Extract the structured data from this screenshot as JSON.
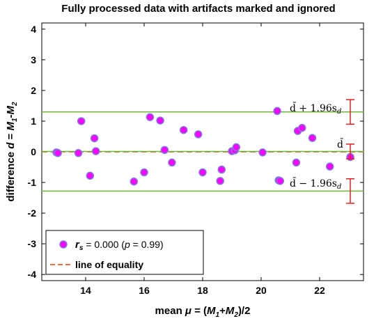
{
  "chart_data": {
    "type": "scatter",
    "title": "Fully processed data with artifacts marked and ignored",
    "xlabel": "mean μ = (M1+M2)/2",
    "ylabel": "difference d = M1-M2",
    "xlim": [
      12.5,
      23.5
    ],
    "ylim": [
      -4.2,
      4.2
    ],
    "x_ticks": [
      "14",
      "16",
      "18",
      "20",
      "22"
    ],
    "y_ticks": [
      "4",
      "3",
      "2",
      "1",
      "0",
      "-1",
      "-2",
      "-3",
      "-4"
    ],
    "grid": false,
    "series": [
      {
        "name": "rs = 0.000 (p = 0.99)",
        "marker_color": "#ff00ff",
        "marker_edge": "#7b7bdc",
        "x": [
          13.0,
          13.05,
          13.75,
          13.85,
          14.15,
          14.3,
          14.35,
          15.65,
          16.0,
          16.2,
          16.55,
          16.7,
          16.95,
          17.35,
          17.85,
          18.0,
          18.6,
          18.65,
          19.0,
          19.1,
          19.15,
          20.05,
          20.55,
          20.6,
          20.65,
          21.2,
          21.25,
          21.4,
          21.75,
          22.35,
          23.05
        ],
        "y": [
          -0.02,
          -0.04,
          -0.04,
          1.0,
          -0.78,
          0.44,
          0.02,
          -0.97,
          -0.67,
          1.13,
          1.02,
          0.06,
          -0.35,
          0.71,
          0.57,
          -0.67,
          -0.95,
          -0.58,
          0.02,
          0.05,
          0.15,
          -0.02,
          1.33,
          -0.93,
          -0.95,
          -0.35,
          0.68,
          0.78,
          0.45,
          -0.48,
          -0.17
        ]
      }
    ],
    "reference_lines": [
      {
        "name": "line of equality",
        "y": 0.0,
        "style": "dashed",
        "color": "#e87040"
      },
      {
        "name": "mean difference",
        "y": 0.01,
        "color": "#6fb53c"
      },
      {
        "name": "upper limit",
        "y": 1.3,
        "color": "#6fb53c"
      },
      {
        "name": "lower limit",
        "y": -1.28,
        "color": "#6fb53c"
      }
    ],
    "confidence_intervals": [
      {
        "lo": 0.9,
        "hi": 1.7
      },
      {
        "lo": -0.23,
        "hi": 0.25
      },
      {
        "lo": -1.68,
        "hi": -0.88
      }
    ],
    "legend": {
      "placement": "bottom-left",
      "entries": [
        "rs = 0.000 (p = 0.99)",
        "line of equality"
      ]
    }
  },
  "annotations": {
    "upper": "d̄ + 1.96s",
    "upper_sub": "d",
    "mean": "d̄",
    "lower": "d̄ − 1.96s",
    "lower_sub": "d"
  },
  "colors": {
    "limit_line": "#6fb53c",
    "equality_line": "#e87040",
    "errorbar": "#e02020",
    "marker_face": "#ff00ff",
    "marker_edge": "#7b7bdc"
  }
}
